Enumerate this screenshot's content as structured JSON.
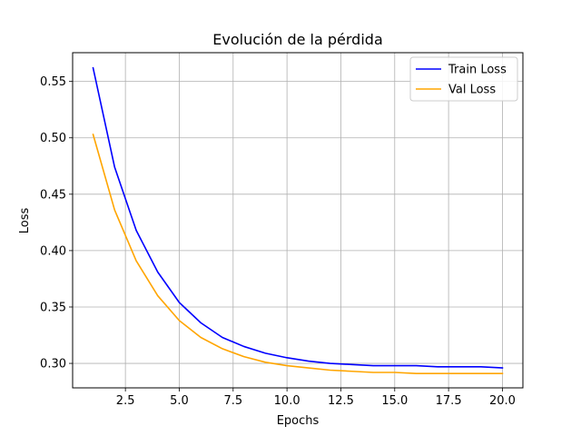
{
  "chart_data": {
    "type": "line",
    "title": "Evolución de la pérdida",
    "xlabel": "Epochs",
    "ylabel": "Loss",
    "xlim": [
      0.05,
      20.95
    ],
    "ylim": [
      0.2783,
      0.5755
    ],
    "xticks": [
      2.5,
      5.0,
      7.5,
      10.0,
      12.5,
      15.0,
      17.5,
      20.0
    ],
    "xtick_labels": [
      "2.5",
      "5.0",
      "7.5",
      "10.0",
      "12.5",
      "15.0",
      "17.5",
      "20.0"
    ],
    "yticks": [
      0.3,
      0.35,
      0.4,
      0.45,
      0.5,
      0.55
    ],
    "ytick_labels": [
      "0.30",
      "0.35",
      "0.40",
      "0.45",
      "0.50",
      "0.55"
    ],
    "grid": true,
    "legend_position": "top-right",
    "x": [
      1,
      2,
      3,
      4,
      5,
      6,
      7,
      8,
      9,
      10,
      11,
      12,
      13,
      14,
      15,
      16,
      17,
      18,
      19,
      20
    ],
    "series": [
      {
        "name": "Train Loss",
        "color": "#0000ff",
        "values": [
          0.562,
          0.474,
          0.418,
          0.381,
          0.354,
          0.336,
          0.323,
          0.315,
          0.309,
          0.305,
          0.302,
          0.3,
          0.299,
          0.298,
          0.298,
          0.298,
          0.297,
          0.297,
          0.297,
          0.296
        ]
      },
      {
        "name": "Val Loss",
        "color": "#ffa500",
        "values": [
          0.503,
          0.436,
          0.391,
          0.36,
          0.338,
          0.323,
          0.313,
          0.306,
          0.301,
          0.298,
          0.296,
          0.294,
          0.293,
          0.292,
          0.292,
          0.291,
          0.291,
          0.291,
          0.291,
          0.291
        ]
      }
    ]
  }
}
